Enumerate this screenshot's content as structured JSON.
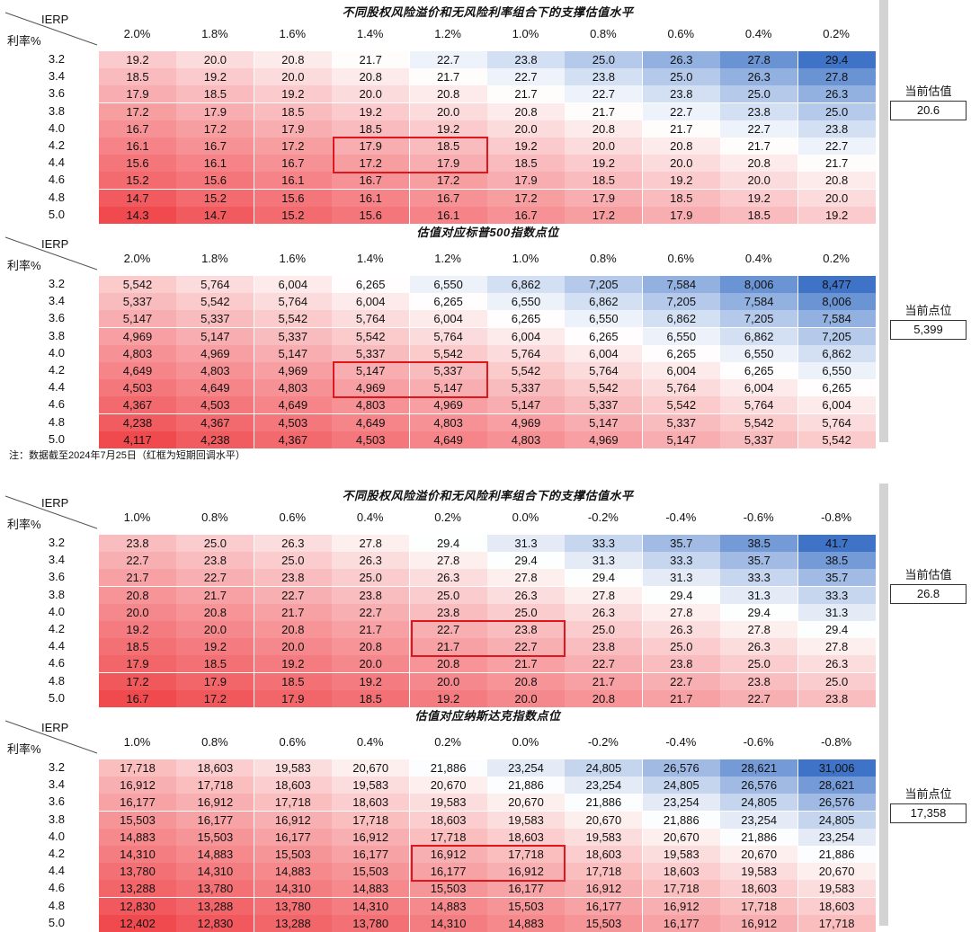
{
  "note": "注：数据截至2024年7月25日（红框为短期回调水平）",
  "axis": {
    "ierp_label": "IERP",
    "rate_label": "利率%"
  },
  "colors": {
    "low": "#f04a4f",
    "mid": "#ffffff",
    "high": "#3e73c7",
    "box": "#e0161d"
  },
  "chart_data": [
    {
      "type": "table",
      "title": "不同股权风险溢价和无风险利率组合下的支撑估值水平",
      "columns": [
        "2.0%",
        "1.8%",
        "1.6%",
        "1.4%",
        "1.2%",
        "1.0%",
        "0.8%",
        "0.6%",
        "0.4%",
        "0.2%"
      ],
      "rows": [
        "3.2",
        "3.4",
        "3.6",
        "3.8",
        "4.0",
        "4.2",
        "4.4",
        "4.6",
        "4.8",
        "5.0"
      ],
      "values": [
        [
          "19.2",
          "20.0",
          "20.8",
          "21.7",
          "22.7",
          "23.8",
          "25.0",
          "26.3",
          "27.8",
          "29.4"
        ],
        [
          "18.5",
          "19.2",
          "20.0",
          "20.8",
          "21.7",
          "22.7",
          "23.8",
          "25.0",
          "26.3",
          "27.8"
        ],
        [
          "17.9",
          "18.5",
          "19.2",
          "20.0",
          "20.8",
          "21.7",
          "22.7",
          "23.8",
          "25.0",
          "26.3"
        ],
        [
          "17.2",
          "17.9",
          "18.5",
          "19.2",
          "20.0",
          "20.8",
          "21.7",
          "22.7",
          "23.8",
          "25.0"
        ],
        [
          "16.7",
          "17.2",
          "17.9",
          "18.5",
          "19.2",
          "20.0",
          "20.8",
          "21.7",
          "22.7",
          "23.8"
        ],
        [
          "16.1",
          "16.7",
          "17.2",
          "17.9",
          "18.5",
          "19.2",
          "20.0",
          "20.8",
          "21.7",
          "22.7"
        ],
        [
          "15.6",
          "16.1",
          "16.7",
          "17.2",
          "17.9",
          "18.5",
          "19.2",
          "20.0",
          "20.8",
          "21.7"
        ],
        [
          "15.2",
          "15.6",
          "16.1",
          "16.7",
          "17.2",
          "17.9",
          "18.5",
          "19.2",
          "20.0",
          "20.8"
        ],
        [
          "14.7",
          "15.2",
          "15.6",
          "16.1",
          "16.7",
          "17.2",
          "17.9",
          "18.5",
          "19.2",
          "20.0"
        ],
        [
          "14.3",
          "14.7",
          "15.2",
          "15.6",
          "16.1",
          "16.7",
          "17.2",
          "17.9",
          "18.5",
          "19.2"
        ]
      ],
      "highlight": {
        "row_start": 5,
        "row_end": 6,
        "col_start": 3,
        "col_end": 4
      },
      "side_label": "当前估值",
      "side_value": "20.6"
    },
    {
      "type": "table",
      "title": "估值对应标普500指数点位",
      "columns": [
        "2.0%",
        "1.8%",
        "1.6%",
        "1.4%",
        "1.2%",
        "1.0%",
        "0.8%",
        "0.6%",
        "0.4%",
        "0.2%"
      ],
      "rows": [
        "3.2",
        "3.4",
        "3.6",
        "3.8",
        "4.0",
        "4.2",
        "4.4",
        "4.6",
        "4.8",
        "5.0"
      ],
      "values": [
        [
          "5,542",
          "5,764",
          "6,004",
          "6,265",
          "6,550",
          "6,862",
          "7,205",
          "7,584",
          "8,006",
          "8,477"
        ],
        [
          "5,337",
          "5,542",
          "5,764",
          "6,004",
          "6,265",
          "6,550",
          "6,862",
          "7,205",
          "7,584",
          "8,006"
        ],
        [
          "5,147",
          "5,337",
          "5,542",
          "5,764",
          "6,004",
          "6,265",
          "6,550",
          "6,862",
          "7,205",
          "7,584"
        ],
        [
          "4,969",
          "5,147",
          "5,337",
          "5,542",
          "5,764",
          "6,004",
          "6,265",
          "6,550",
          "6,862",
          "7,205"
        ],
        [
          "4,803",
          "4,969",
          "5,147",
          "5,337",
          "5,542",
          "5,764",
          "6,004",
          "6,265",
          "6,550",
          "6,862"
        ],
        [
          "4,649",
          "4,803",
          "4,969",
          "5,147",
          "5,337",
          "5,542",
          "5,764",
          "6,004",
          "6,265",
          "6,550"
        ],
        [
          "4,503",
          "4,649",
          "4,803",
          "4,969",
          "5,147",
          "5,337",
          "5,542",
          "5,764",
          "6,004",
          "6,265"
        ],
        [
          "4,367",
          "4,503",
          "4,649",
          "4,803",
          "4,969",
          "5,147",
          "5,337",
          "5,542",
          "5,764",
          "6,004"
        ],
        [
          "4,238",
          "4,367",
          "4,503",
          "4,649",
          "4,803",
          "4,969",
          "5,147",
          "5,337",
          "5,542",
          "5,764"
        ],
        [
          "4,117",
          "4,238",
          "4,367",
          "4,503",
          "4,649",
          "4,803",
          "4,969",
          "5,147",
          "5,337",
          "5,542"
        ]
      ],
      "highlight": {
        "row_start": 5,
        "row_end": 6,
        "col_start": 3,
        "col_end": 4
      },
      "side_label": "当前点位",
      "side_value": "5,399"
    },
    {
      "type": "table",
      "title": "不同股权风险溢价和无风险利率组合下的支撑估值水平",
      "columns": [
        "1.0%",
        "0.8%",
        "0.6%",
        "0.4%",
        "0.2%",
        "0.0%",
        "-0.2%",
        "-0.4%",
        "-0.6%",
        "-0.8%"
      ],
      "rows": [
        "3.2",
        "3.4",
        "3.6",
        "3.8",
        "4.0",
        "4.2",
        "4.4",
        "4.6",
        "4.8",
        "5.0"
      ],
      "values": [
        [
          "23.8",
          "25.0",
          "26.3",
          "27.8",
          "29.4",
          "31.3",
          "33.3",
          "35.7",
          "38.5",
          "41.7"
        ],
        [
          "22.7",
          "23.8",
          "25.0",
          "26.3",
          "27.8",
          "29.4",
          "31.3",
          "33.3",
          "35.7",
          "38.5"
        ],
        [
          "21.7",
          "22.7",
          "23.8",
          "25.0",
          "26.3",
          "27.8",
          "29.4",
          "31.3",
          "33.3",
          "35.7"
        ],
        [
          "20.8",
          "21.7",
          "22.7",
          "23.8",
          "25.0",
          "26.3",
          "27.8",
          "29.4",
          "31.3",
          "33.3"
        ],
        [
          "20.0",
          "20.8",
          "21.7",
          "22.7",
          "23.8",
          "25.0",
          "26.3",
          "27.8",
          "29.4",
          "31.3"
        ],
        [
          "19.2",
          "20.0",
          "20.8",
          "21.7",
          "22.7",
          "23.8",
          "25.0",
          "26.3",
          "27.8",
          "29.4"
        ],
        [
          "18.5",
          "19.2",
          "20.0",
          "20.8",
          "21.7",
          "22.7",
          "23.8",
          "25.0",
          "26.3",
          "27.8"
        ],
        [
          "17.9",
          "18.5",
          "19.2",
          "20.0",
          "20.8",
          "21.7",
          "22.7",
          "23.8",
          "25.0",
          "26.3"
        ],
        [
          "17.2",
          "17.9",
          "18.5",
          "19.2",
          "20.0",
          "20.8",
          "21.7",
          "22.7",
          "23.8",
          "25.0"
        ],
        [
          "16.7",
          "17.2",
          "17.9",
          "18.5",
          "19.2",
          "20.0",
          "20.8",
          "21.7",
          "22.7",
          "23.8"
        ]
      ],
      "highlight": {
        "row_start": 5,
        "row_end": 6,
        "col_start": 4,
        "col_end": 5
      },
      "side_label": "当前估值",
      "side_value": "26.8"
    },
    {
      "type": "table",
      "title": "估值对应纳斯达克指数点位",
      "columns": [
        "1.0%",
        "0.8%",
        "0.6%",
        "0.4%",
        "0.2%",
        "0.0%",
        "-0.2%",
        "-0.4%",
        "-0.6%",
        "-0.8%"
      ],
      "rows": [
        "3.2",
        "3.4",
        "3.6",
        "3.8",
        "4.0",
        "4.2",
        "4.4",
        "4.6",
        "4.8",
        "5.0"
      ],
      "values": [
        [
          "17,718",
          "18,603",
          "19,583",
          "20,670",
          "21,886",
          "23,254",
          "24,805",
          "26,576",
          "28,621",
          "31,006"
        ],
        [
          "16,912",
          "17,718",
          "18,603",
          "19,583",
          "20,670",
          "21,886",
          "23,254",
          "24,805",
          "26,576",
          "28,621"
        ],
        [
          "16,177",
          "16,912",
          "17,718",
          "18,603",
          "19,583",
          "20,670",
          "21,886",
          "23,254",
          "24,805",
          "26,576"
        ],
        [
          "15,503",
          "16,177",
          "16,912",
          "17,718",
          "18,603",
          "19,583",
          "20,670",
          "21,886",
          "23,254",
          "24,805"
        ],
        [
          "14,883",
          "15,503",
          "16,177",
          "16,912",
          "17,718",
          "18,603",
          "19,583",
          "20,670",
          "21,886",
          "23,254"
        ],
        [
          "14,310",
          "14,883",
          "15,503",
          "16,177",
          "16,912",
          "17,718",
          "18,603",
          "19,583",
          "20,670",
          "21,886"
        ],
        [
          "13,780",
          "14,310",
          "14,883",
          "15,503",
          "16,177",
          "16,912",
          "17,718",
          "18,603",
          "19,583",
          "20,670"
        ],
        [
          "13,288",
          "13,780",
          "14,310",
          "14,883",
          "15,503",
          "16,177",
          "16,912",
          "17,718",
          "18,603",
          "19,583"
        ],
        [
          "12,830",
          "13,288",
          "13,780",
          "14,310",
          "14,883",
          "15,503",
          "16,177",
          "16,912",
          "17,718",
          "18,603"
        ],
        [
          "12,402",
          "12,830",
          "13,288",
          "13,780",
          "14,310",
          "14,883",
          "15,503",
          "16,177",
          "16,912",
          "17,718"
        ]
      ],
      "highlight": {
        "row_start": 5,
        "row_end": 6,
        "col_start": 4,
        "col_end": 5
      },
      "side_label": "当前点位",
      "side_value": "17,358"
    }
  ]
}
